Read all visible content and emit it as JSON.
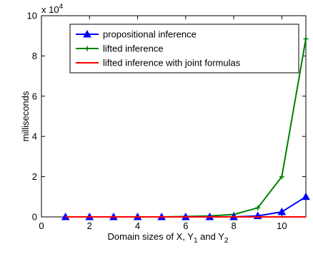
{
  "chart_data": {
    "type": "line",
    "title": "",
    "xlabel": "Domain sizes of X, Y",
    "xlabel_parts": {
      "sub1": "1",
      "and": " and Y",
      "sub2": "2"
    },
    "ylabel": "milliseconds",
    "y_exponent_label": {
      "base": "x 10",
      "exp": "4"
    },
    "xlim": [
      0,
      11
    ],
    "ylim": [
      0,
      10
    ],
    "x_ticks": [
      0,
      2,
      4,
      6,
      8,
      10
    ],
    "y_ticks": [
      0,
      2,
      4,
      6,
      8,
      10
    ],
    "grid": false,
    "legend_position": "top-right",
    "series": [
      {
        "name": "propositional inference",
        "color": "#0000ff",
        "marker": "triangle",
        "x": [
          1,
          2,
          3,
          4,
          5,
          6,
          7,
          8,
          9,
          10,
          11
        ],
        "y": [
          0,
          0,
          0,
          0,
          0,
          0,
          0,
          0,
          0.05,
          0.25,
          1.0
        ]
      },
      {
        "name": "lifted inference",
        "color": "#008000",
        "marker": "plus",
        "x": [
          1,
          2,
          3,
          4,
          5,
          6,
          7,
          8,
          9,
          10,
          11
        ],
        "y": [
          0,
          0,
          0,
          0,
          0,
          0.02,
          0.05,
          0.12,
          0.45,
          2.0,
          8.85
        ]
      },
      {
        "name": "lifted inference with joint formulas",
        "color": "#ff0000",
        "marker": "none",
        "x": [
          1,
          2,
          3,
          4,
          5,
          6,
          7,
          8,
          9,
          10,
          11
        ],
        "y": [
          0,
          0,
          0,
          0,
          0,
          0,
          0,
          0,
          0,
          0,
          0
        ]
      }
    ]
  }
}
